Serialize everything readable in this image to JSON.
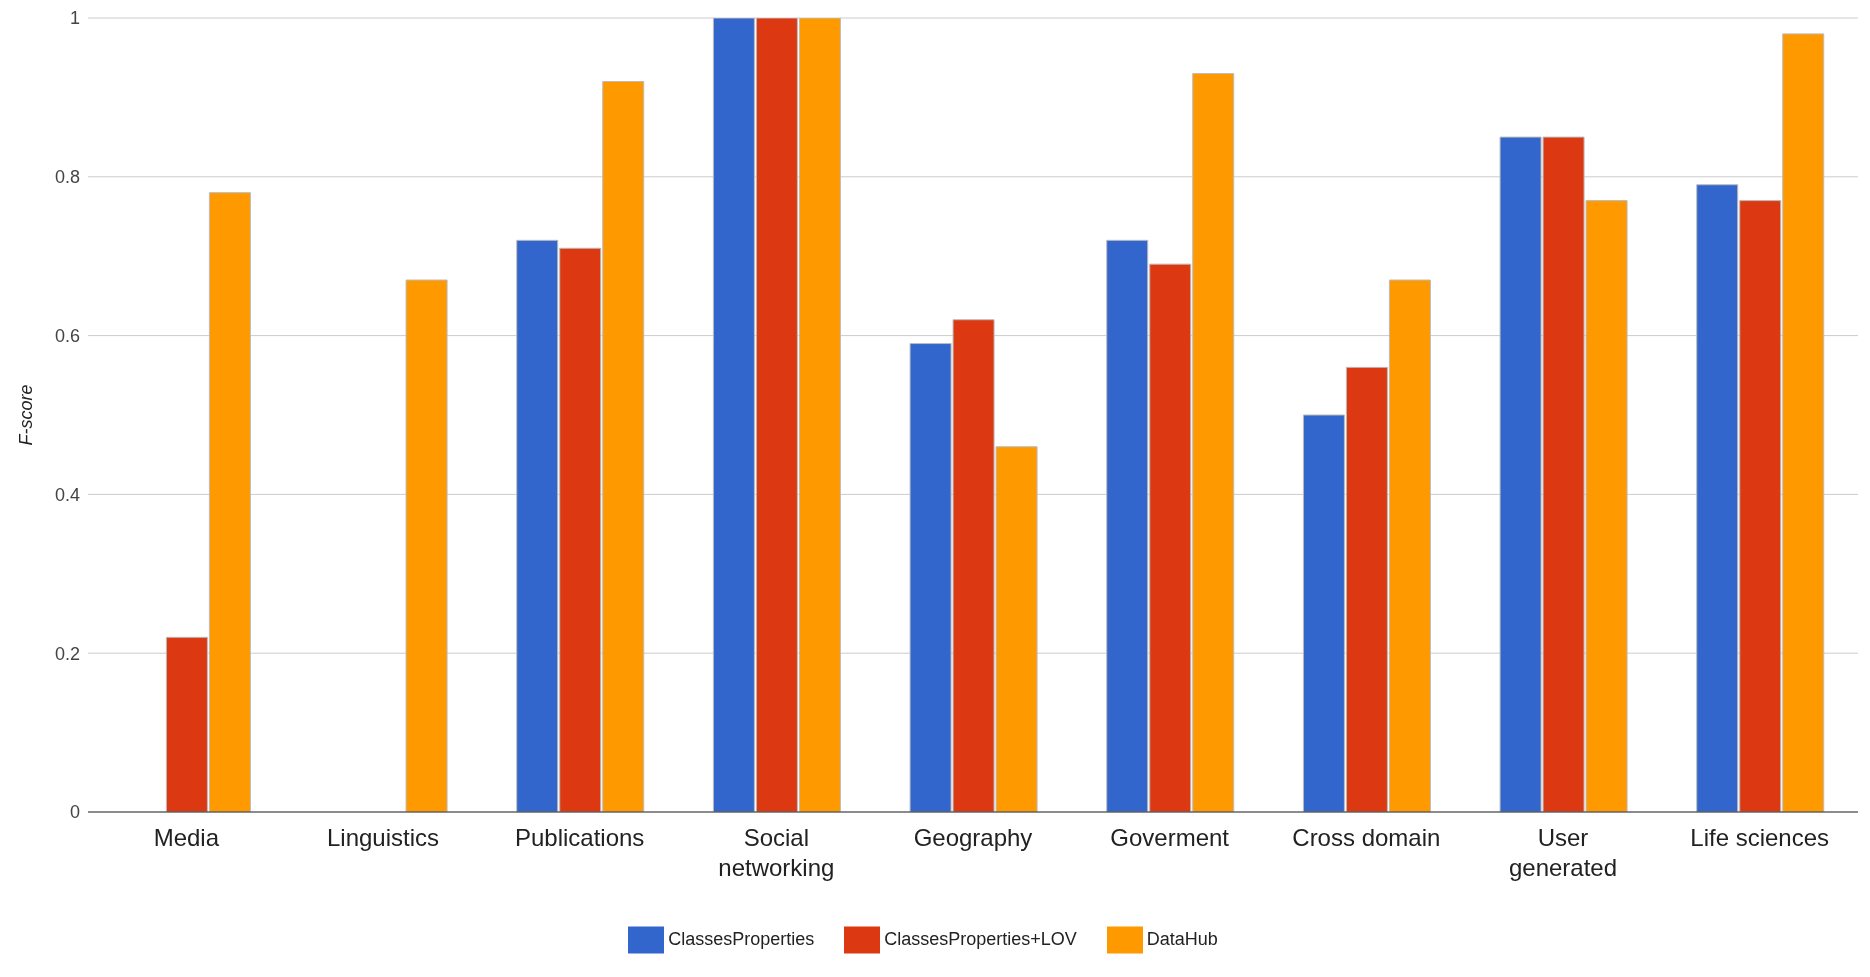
{
  "chart_data": {
    "type": "bar",
    "ylabel": "F-score",
    "categories": [
      "Media",
      "Linguistics",
      "Publications",
      "Social networking",
      "Geography",
      "Goverment",
      "Cross domain",
      "User generated",
      "Life sciences"
    ],
    "series": [
      {
        "name": "ClassesProperties",
        "color": "#3366cc",
        "values": [
          0,
          0,
          0.72,
          1,
          0.59,
          0.72,
          0.5,
          0.85,
          0.79
        ]
      },
      {
        "name": "ClassesProperties+LOV",
        "color": "#dc3912",
        "values": [
          0.22,
          0,
          0.71,
          1,
          0.62,
          0.69,
          0.56,
          0.85,
          0.77
        ]
      },
      {
        "name": "DataHub",
        "color": "#ff9900",
        "values": [
          0.78,
          0.67,
          0.92,
          1,
          0.46,
          0.93,
          0.67,
          0.77,
          0.98
        ]
      }
    ],
    "ylim": [
      0,
      1
    ],
    "yticks": [
      0,
      0.2,
      0.4,
      0.6,
      0.8,
      1
    ],
    "grid": "y",
    "legend": "bottom"
  }
}
